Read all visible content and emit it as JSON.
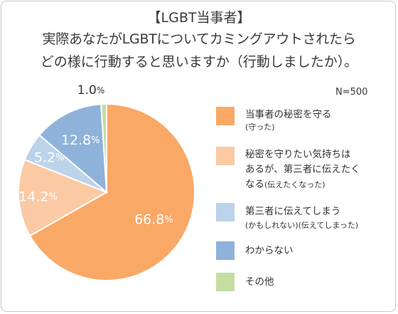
{
  "title_line1": "【LGBT当事者】",
  "title_line2": "実際あなたがLGBTについてカミングアウトされたら",
  "title_line3": "どの様に行動すると思いますか（行動しましたか）。",
  "sample": "N=500",
  "chart_data": {
    "type": "pie",
    "title": "【LGBT当事者】実際あなたがLGBTについてカミングアウトされたらどの様に行動すると思いますか（行動しましたか）。",
    "start_angle_deg": 0,
    "direction": "clockwise",
    "slices": [
      {
        "label": "当事者の秘密を守る(守った)",
        "value": 66.8,
        "display": "66.8",
        "color": "#f9a866"
      },
      {
        "label": "秘密を守りたい気持ちはあるが、第三者に伝えたくなる(伝えたくなった)",
        "value": 14.2,
        "display": "14.2",
        "color": "#fbcaa4"
      },
      {
        "label": "第三者に伝えてしまう(かもしれない)(伝えてしまった)",
        "value": 5.2,
        "display": "5.2",
        "color": "#bcd3ea"
      },
      {
        "label": "わからない",
        "value": 12.8,
        "display": "12.8",
        "color": "#8fb2da"
      },
      {
        "label": "その他",
        "value": 1.0,
        "display": "1.0",
        "color": "#c5dda0"
      }
    ],
    "unit": "%"
  },
  "legend": [
    {
      "main": "当事者の秘密を守る",
      "sub": "(守った)"
    },
    {
      "main": "秘密を守りたい気持ちは",
      "main2": "あるが、第三者に伝えたく",
      "main3": "なる",
      "sub": "(伝えたくなった)"
    },
    {
      "main": "第三者に伝えてしまう",
      "sub": "(かもしれない)(伝えてしまった)"
    },
    {
      "main": "わからない"
    },
    {
      "main": "その他"
    }
  ]
}
